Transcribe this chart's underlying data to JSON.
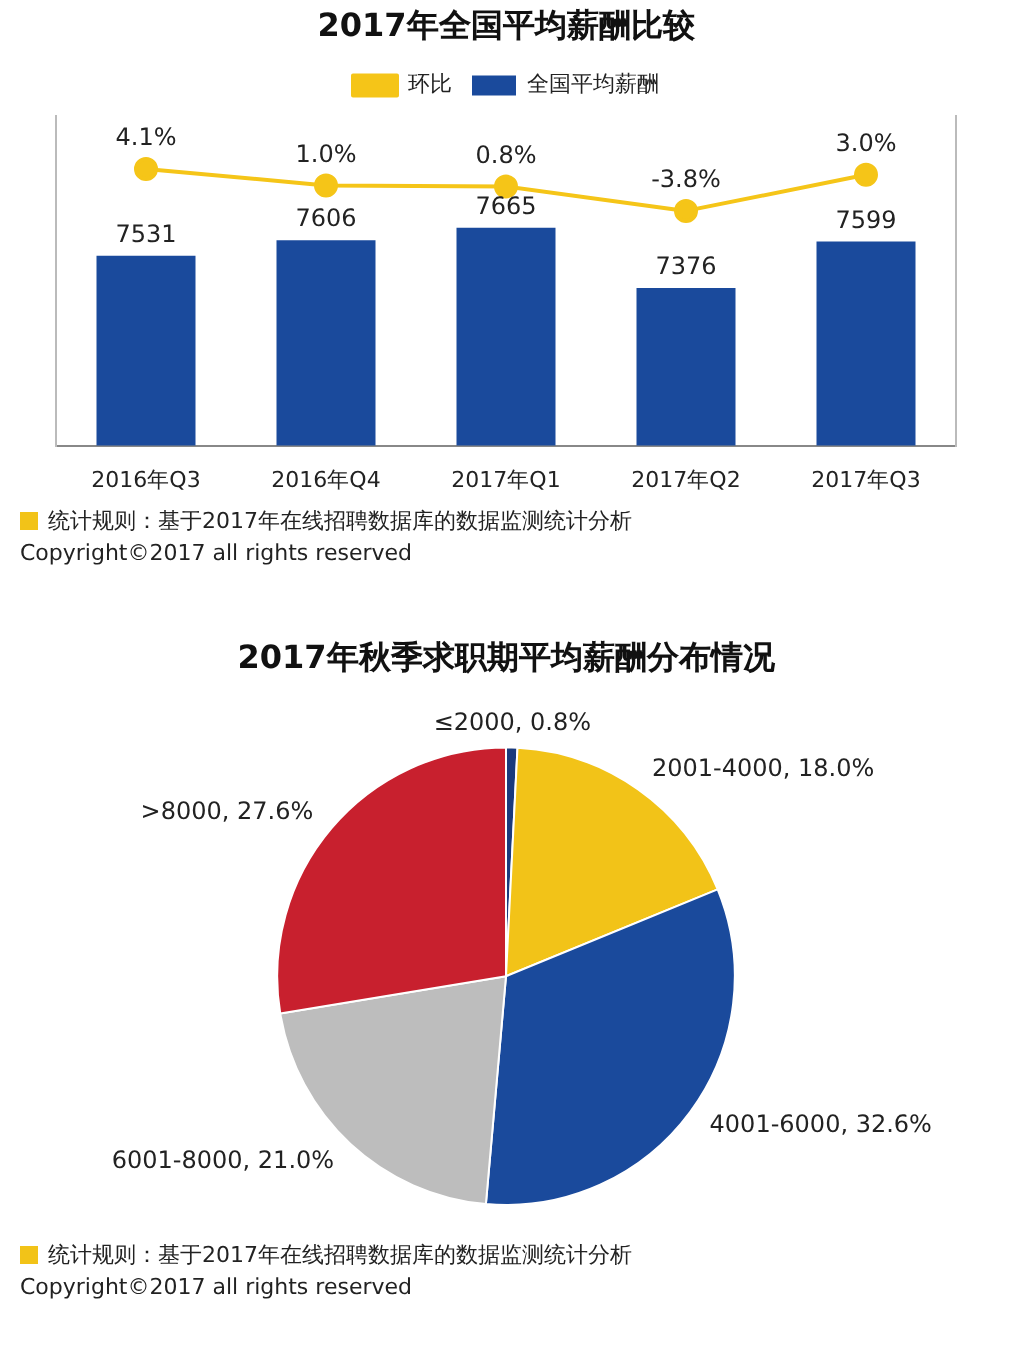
{
  "chart_data": [
    {
      "type": "bar",
      "title": "2017年全国平均薪酬比较",
      "categories": [
        "2016年Q3",
        "2016年Q4",
        "2017年Q1",
        "2017年Q2",
        "2017年Q3"
      ],
      "series": [
        {
          "name": "全国平均薪酬",
          "type": "bar",
          "color": "#1a4a9c",
          "values": [
            7531,
            7606,
            7665,
            7376,
            7599
          ],
          "value_labels": [
            "7531",
            "7606",
            "7665",
            "7376",
            "7599"
          ]
        },
        {
          "name": "环比",
          "type": "line",
          "axis": "y2",
          "color": "#f5c518",
          "values": [
            4.1,
            1.0,
            0.8,
            -3.8,
            3.0
          ],
          "value_labels": [
            "4.1%",
            "1.0%",
            "0.8%",
            "-3.8%",
            "3.0%"
          ]
        }
      ],
      "ylim": [
        6620,
        8200
      ],
      "y2lim": [
        -48,
        14
      ],
      "tick_labels": "x",
      "legend": "top",
      "grid": false,
      "marker": "circle",
      "annotations": [
        "统计规则：基于2017年在线招聘数据库的数据监测统计分析",
        "Copyright©2017 all rights reserved"
      ]
    },
    {
      "type": "pie",
      "title": "2017年秋季求职期平均薪酬分布情况",
      "categories": [
        "≤2000",
        "2001-4000",
        "4001-6000",
        "6001-8000",
        ">8000"
      ],
      "values": [
        0.8,
        18.0,
        32.6,
        21.0,
        27.6
      ],
      "colors": [
        "#1a3a7c",
        "#f2c318",
        "#1a4a9c",
        "#bdbdbd",
        "#c8202e"
      ],
      "value_labels": [
        "0.8%",
        "18.0%",
        "32.6%",
        "21.0%",
        "27.6%"
      ],
      "legend": false,
      "annotations": [
        "统计规则：基于2017年在线招聘数据库的数据监测统计分析",
        "Copyright©2017 all rights reserved"
      ]
    }
  ]
}
